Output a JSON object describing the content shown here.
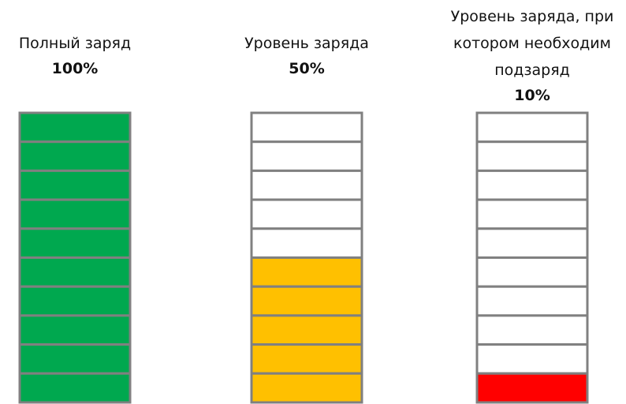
{
  "ylim": [
    0,
    100
  ],
  "batteries": [
    {
      "title": "Полный заряд",
      "value": 100,
      "value_label": "100%",
      "color": "#00a84f"
    },
    {
      "title": "Уровень заряда",
      "value": 50,
      "value_label": "50%",
      "color": "#ffc000"
    },
    {
      "title": "Уровень заряда, при котором необходим подзаряд",
      "value": 10,
      "value_label": "10%",
      "color": "#ff0000"
    }
  ]
}
